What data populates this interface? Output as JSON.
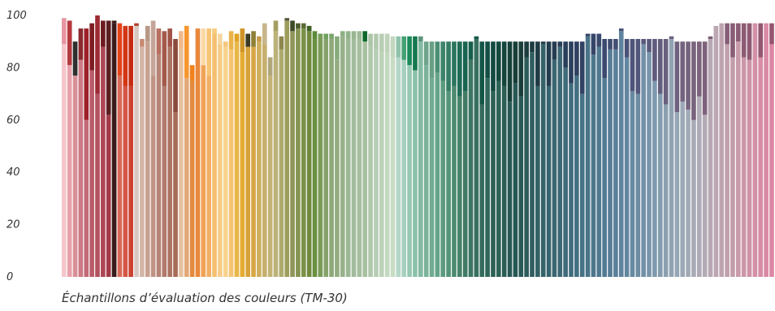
{
  "chart_data": {
    "type": "bar",
    "style": "stacked",
    "xlabel": "Échantillons d’évaluation des couleurs (TM-30)",
    "ylim": [
      0,
      100
    ],
    "yticks": [
      0,
      20,
      40,
      60,
      80,
      100
    ],
    "grid": false,
    "legend": "none",
    "series": [
      {
        "name": "",
        "values": [
          89,
          81,
          77,
          83,
          60,
          79,
          70,
          88,
          62,
          97,
          77,
          73,
          73,
          96,
          88,
          90,
          77,
          85,
          73,
          88,
          63,
          87,
          76,
          75,
          95,
          81,
          77,
          93,
          89,
          88,
          87,
          90,
          86,
          88,
          88,
          90,
          89,
          77,
          94,
          87,
          98,
          94,
          95,
          95,
          94,
          91,
          92,
          91,
          91,
          83,
          92,
          91,
          91,
          91,
          90,
          88,
          87,
          86,
          86,
          84,
          84,
          83,
          81,
          79,
          90,
          81,
          76,
          78,
          75,
          71,
          73,
          69,
          71,
          83,
          91,
          66,
          76,
          71,
          75,
          73,
          67,
          74,
          69,
          84,
          86,
          73,
          89,
          73,
          83,
          88,
          80,
          74,
          77,
          70,
          92,
          85,
          88,
          76,
          87,
          87,
          94,
          84,
          71,
          70,
          89,
          86,
          75,
          70,
          66,
          91,
          63,
          67,
          64,
          60,
          69,
          62,
          91,
          96,
          97,
          89,
          84,
          90,
          84,
          83,
          97,
          84,
          97,
          89
        ]
      },
      {
        "name": "",
        "values": [
          10,
          17,
          13,
          12,
          35,
          18,
          30,
          10,
          36,
          1,
          20,
          23,
          23,
          1,
          3,
          6,
          21,
          10,
          21,
          7,
          28,
          7,
          20,
          6,
          0,
          14,
          18,
          2,
          4,
          2,
          7,
          3,
          9,
          5,
          6,
          2,
          8,
          7,
          4,
          5,
          1,
          4,
          2,
          2,
          2,
          3,
          1,
          2,
          2,
          9,
          2,
          3,
          3,
          3,
          4,
          5,
          6,
          7,
          7,
          8,
          8,
          9,
          11,
          13,
          2,
          9,
          14,
          12,
          15,
          19,
          17,
          21,
          19,
          7,
          1,
          24,
          14,
          19,
          15,
          17,
          23,
          16,
          21,
          6,
          4,
          17,
          1,
          17,
          7,
          2,
          10,
          16,
          13,
          20,
          1,
          8,
          5,
          15,
          4,
          4,
          1,
          7,
          20,
          21,
          2,
          5,
          16,
          21,
          25,
          1,
          27,
          23,
          26,
          30,
          21,
          28,
          1,
          0,
          0,
          8,
          13,
          7,
          13,
          14,
          0,
          13,
          0,
          8
        ]
      }
    ],
    "colors_bottom": [
      "#f5c6cc",
      "#e8a1aa",
      "#d88f97",
      "#cc7a85",
      "#c46b78",
      "#b95c6a",
      "#b3525f",
      "#ae4756",
      "#a33a48",
      "#3a1a1a",
      "#d96a58",
      "#d45546",
      "#cc4130",
      "#d8c8c2",
      "#d4b6a8",
      "#c8a190",
      "#c09385",
      "#b68476",
      "#b27a6c",
      "#ad7462",
      "#a86b58",
      "#e6c1a1",
      "#e2a878",
      "#e38a3d",
      "#e9883b",
      "#f0a356",
      "#f2b066",
      "#f4c06f",
      "#f7cc88",
      "#f8d38f",
      "#f5c473",
      "#e7b747",
      "#e4ac32",
      "#d8a238",
      "#d7a744",
      "#ccae5d",
      "#c6b06e",
      "#c3b376",
      "#bbb27a",
      "#aeab6f",
      "#9d9d5e",
      "#8f9658",
      "#859450",
      "#7c9248",
      "#6f8a3e",
      "#6a9042",
      "#7a9b57",
      "#86a36b",
      "#8fa87a",
      "#93ad81",
      "#97b18a",
      "#9cb794",
      "#a2bb9c",
      "#a6be9e",
      "#a8c0a0",
      "#b1c8ad",
      "#b6cdb4",
      "#bcd2b9",
      "#c3d8c0",
      "#c8dcc4",
      "#b5d6c8",
      "#a7cfbe",
      "#98c8b4",
      "#8bc1ab",
      "#83baa2",
      "#7ab39a",
      "#70ab92",
      "#66a48a",
      "#5c9b80",
      "#549377",
      "#4d8b70",
      "#47836a",
      "#417b66",
      "#3e7563",
      "#387060",
      "#346b5d",
      "#31665a",
      "#2e6257",
      "#2d6256",
      "#2a5e55",
      "#285954",
      "#275753",
      "#2a5a57",
      "#2d5d5b",
      "#315f61",
      "#336266",
      "#366369",
      "#37636e",
      "#3a6671",
      "#3d6875",
      "#406b7a",
      "#426d7e",
      "#446f82",
      "#477285",
      "#4a7489",
      "#4d768c",
      "#507890",
      "#537a93",
      "#577d96",
      "#5b8099",
      "#5f839c",
      "#63869f",
      "#6889a2",
      "#6d8ca4",
      "#7290a7",
      "#7894aa",
      "#7e98ad",
      "#849caf",
      "#8aa0b1",
      "#90a3b3",
      "#96a6b5",
      "#9ca8b6",
      "#a2aab6",
      "#a8abb6",
      "#aeabb6",
      "#b3aab5",
      "#b7a8b3",
      "#bba6b1",
      "#bea3af",
      "#c1a0ad",
      "#c49dab",
      "#c89aaa",
      "#cc96a8",
      "#cf93a7",
      "#d390a6",
      "#d68da5",
      "#d98aa4",
      "#db87a3"
    ],
    "colors_top": [
      "#e896a1",
      "#b5393f",
      "#2f2f2f",
      "#8a2b2f",
      "#9c2129",
      "#7d1d23",
      "#9d2a33",
      "#6e1b22",
      "#5b1f22",
      "#3a1a1a",
      "#e5421a",
      "#d33615",
      "#c42b10",
      "#b0422c",
      "#c98a72",
      "#b89987",
      "#c4a598",
      "#b66f5e",
      "#a35a4a",
      "#a15447",
      "#8a4a3c",
      "#f0b98c",
      "#f6962f",
      "#f0811b",
      "#f9cc8b",
      "#fbd9a6",
      "#f7c474",
      "#f6cb7b",
      "#f6d69f",
      "#f5c77b",
      "#eab34b",
      "#e0a21f",
      "#cf9425",
      "#3b3b26",
      "#8d8037",
      "#c59a48",
      "#c7b68a",
      "#b1a77d",
      "#a59e63",
      "#8d8750",
      "#55563b",
      "#3d4a26",
      "#4b5b2c",
      "#5a6b36",
      "#3f5e24",
      "#5d8a3a",
      "#6b9a52",
      "#70a05d",
      "#7ba46d",
      "#87ab7b",
      "#8daf83",
      "#92b389",
      "#98b78f",
      "#9ebb95",
      "#0f6a2a",
      "#adc5a9",
      "#b2c9ae",
      "#b8ceb4",
      "#bed2b9",
      "#c3d6be",
      "#8fc2aa",
      "#45a173",
      "#1b8a5a",
      "#16784e",
      "#5e947d",
      "#6ea48c",
      "#67a083",
      "#4c8f75",
      "#3d846b",
      "#347d64",
      "#2b755e",
      "#1f6b56",
      "#196451",
      "#175e4c",
      "#155a49",
      "#135546",
      "#134f44",
      "#134b42",
      "#14483f",
      "#15443c",
      "#164039",
      "#173e37",
      "#193e3a",
      "#1b3d3e",
      "#1d3c42",
      "#1f3c46",
      "#223d4a",
      "#243d4e",
      "#263d52",
      "#283e56",
      "#2a3f5a",
      "#2c405e",
      "#2e4161",
      "#304364",
      "#334467",
      "#36466a",
      "#39486d",
      "#3c4a70",
      "#3f4c72",
      "#434e74",
      "#475076",
      "#4b5278",
      "#4f547a",
      "#53567b",
      "#57587c",
      "#5b5a7d",
      "#5f5c7e",
      "#635e7e",
      "#67607f",
      "#6b617f",
      "#6f627f",
      "#73637e",
      "#76637e",
      "#79637d",
      "#7c637c",
      "#7e627b",
      "#80617a",
      "#826079",
      "#845f78",
      "#865e77",
      "#885d76",
      "#8a5c75",
      "#8c5b74",
      "#8e5a73",
      "#905972",
      "#925871",
      "#945770",
      "#96566f"
    ]
  }
}
